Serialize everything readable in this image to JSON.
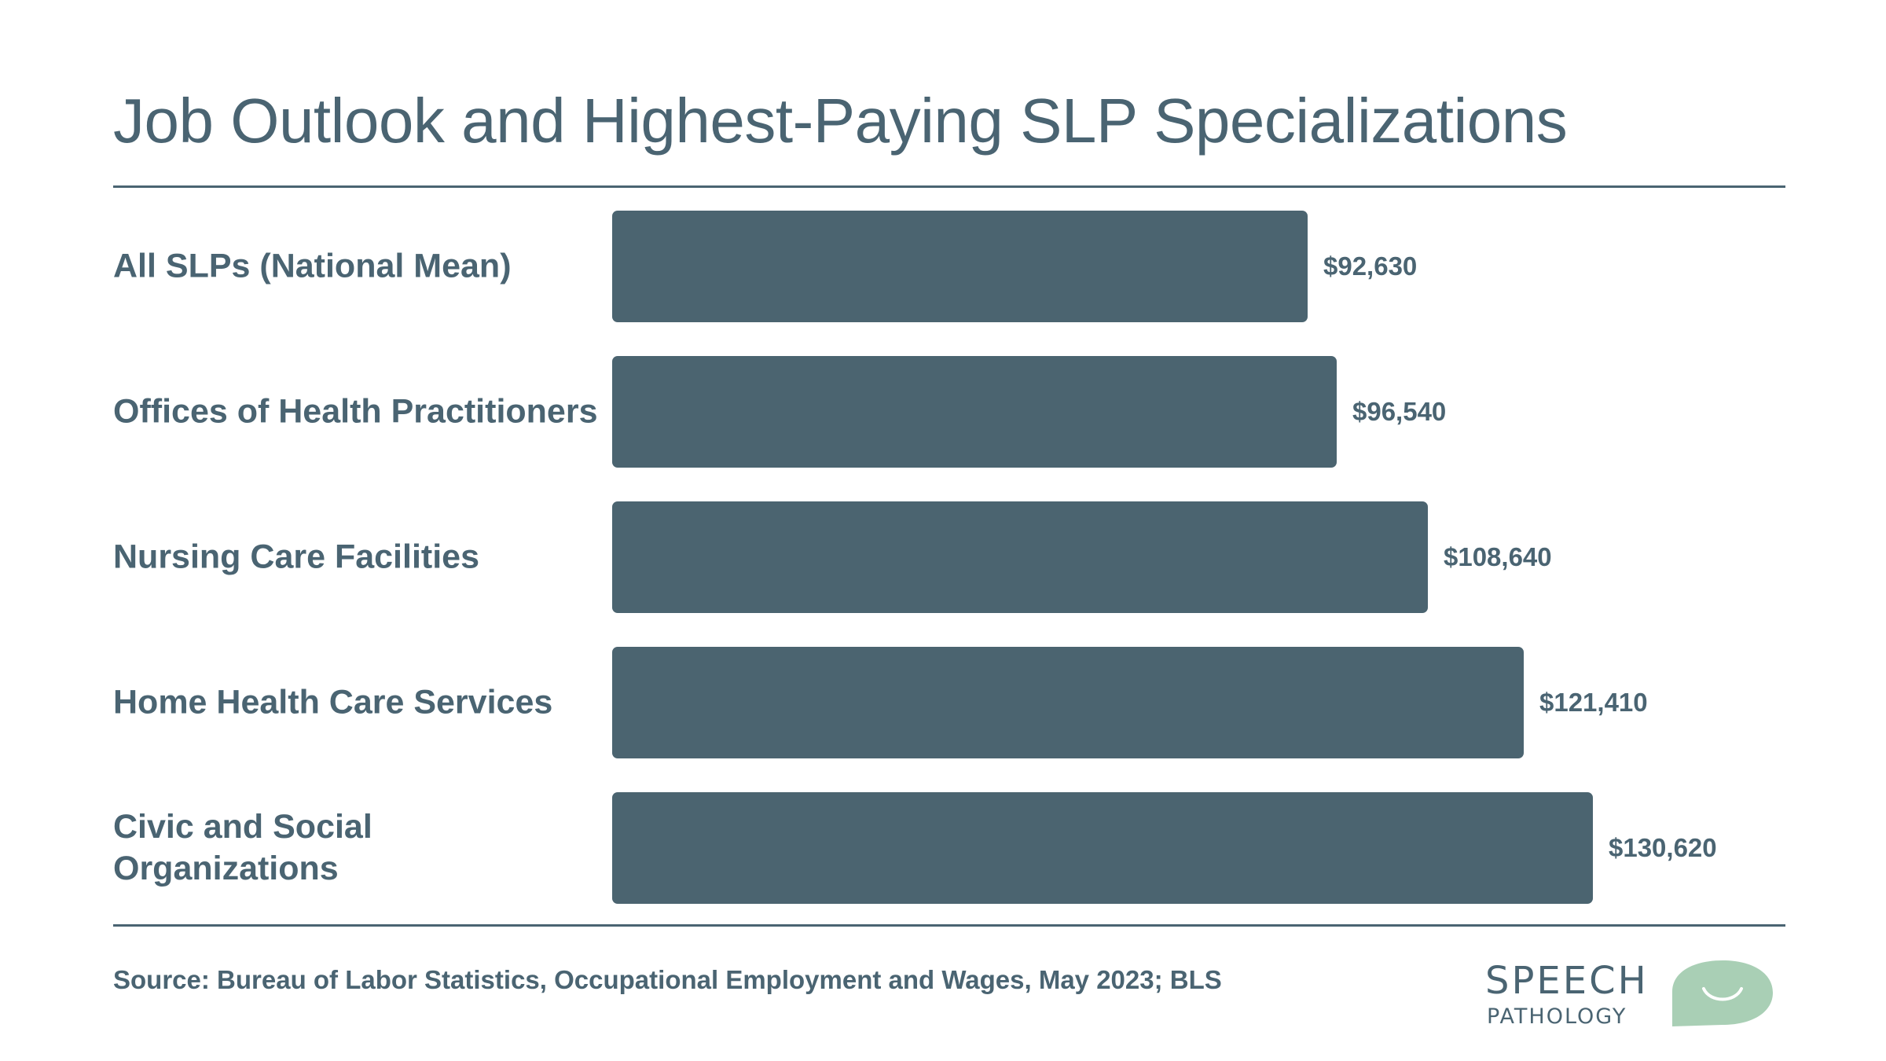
{
  "title": "Job Outlook and Highest-Paying SLP Specializations",
  "source": "Source: Bureau of Labor Statistics, Occupational Employment and Wages, May 2023; BLS",
  "logo": {
    "line1": "SPEECH",
    "line2": "PATHOLOGY"
  },
  "colors": {
    "bar": "#4b6470",
    "text": "#4a6472",
    "logo_green": "#a9cfb5"
  },
  "chart_data": {
    "type": "bar",
    "orientation": "horizontal",
    "title": "Job Outlook and Highest-Paying SLP Specializations",
    "xlabel": "",
    "ylabel": "",
    "categories": [
      "All SLPs (National Mean)",
      "Offices of Health Practitioners",
      "Nursing Care Facilities",
      "Home Health Care Services",
      "Civic and Social Organizations"
    ],
    "values": [
      92630,
      96540,
      108640,
      121410,
      130620
    ],
    "value_labels": [
      "$92,630",
      "$96,540",
      "$108,640",
      "$121,410",
      "$130,620"
    ],
    "xlim": [
      0,
      130620
    ],
    "grid": false,
    "legend": "none"
  }
}
